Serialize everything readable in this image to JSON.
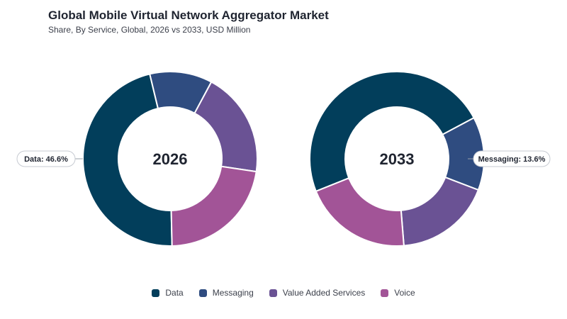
{
  "chart_data": {
    "type": "donut",
    "title": "Global Mobile Virtual Network Aggregator Market",
    "subtitle": "Share, By Service, Global, 2026 vs 2033, USD Million",
    "categories": [
      "Data",
      "Messaging",
      "Value Added Services",
      "Voice"
    ],
    "colors": [
      "#023e5b",
      "#2f4c80",
      "#6a5294",
      "#a25497"
    ],
    "charts": [
      {
        "label": "2026",
        "values": [
          46.6,
          11.6,
          19.5,
          22.3
        ],
        "callout": "Data: 46.6%"
      },
      {
        "label": "2033",
        "values": [
          48.3,
          13.6,
          17.9,
          20.2
        ],
        "callout": "Messaging: 13.6%"
      }
    ],
    "legend": {
      "position": "bottom-center",
      "items": [
        "Data",
        "Messaging",
        "Value Added Services",
        "Voice"
      ]
    }
  }
}
